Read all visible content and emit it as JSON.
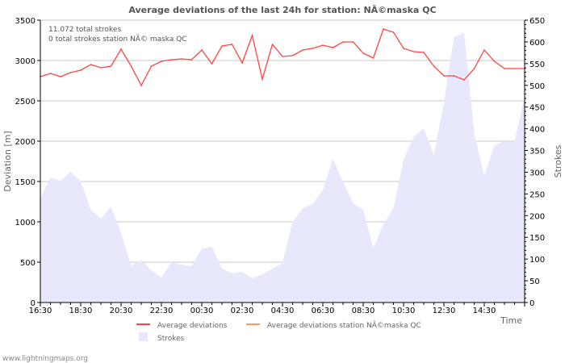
{
  "chart_data": {
    "type": "line",
    "title": "Average deviations of the last 24h for station: NÃ©maska QC",
    "info_lines": [
      "11.072 total strokes",
      "0 total strokes station NÃ© maska QC"
    ],
    "xlabel": "Time",
    "ylabel": "Deviation  [m]",
    "y2label": "Strokes",
    "ylim": [
      0,
      3500
    ],
    "y2lim": [
      0,
      650
    ],
    "yticks": [
      0,
      500,
      1000,
      1500,
      2000,
      2500,
      3000,
      3500
    ],
    "y2ticks": [
      0,
      50,
      100,
      150,
      200,
      250,
      300,
      350,
      400,
      450,
      500,
      550,
      600,
      650
    ],
    "xtick_labels": [
      "16:30",
      "18:30",
      "20:30",
      "22:30",
      "00:30",
      "02:30",
      "04:30",
      "06:30",
      "08:30",
      "10:30",
      "12:30",
      "14:30"
    ],
    "x_step_minutes": 30,
    "grid": true,
    "legend_position": "bottom",
    "series": [
      {
        "name": "Average deviations",
        "type": "line",
        "axis": "left",
        "color": "#ff4444",
        "values": [
          2800,
          2840,
          2800,
          2850,
          2880,
          2950,
          2910,
          2930,
          3140,
          2930,
          2690,
          2930,
          2990,
          3010,
          3020,
          3010,
          3130,
          2960,
          3180,
          3200,
          2970,
          3310,
          2770,
          3200,
          3050,
          3060,
          3130,
          3150,
          3190,
          3160,
          3230,
          3230,
          3090,
          3030,
          3390,
          3350,
          3150,
          3110,
          3100,
          2930,
          2810,
          2810,
          2760,
          2900,
          3130,
          2990,
          2900,
          2900,
          2900
        ]
      },
      {
        "name": "Average deviations station NÃ©maska QC",
        "type": "line",
        "axis": "left",
        "color": "#ff9955",
        "values": []
      },
      {
        "name": "Strokes",
        "type": "area",
        "axis": "right",
        "color": "#e8e8fc",
        "values": [
          241,
          288,
          280,
          301,
          279,
          214,
          193,
          221,
          160,
          84,
          98,
          74,
          58,
          93,
          87,
          84,
          124,
          128,
          78,
          67,
          71,
          56,
          65,
          78,
          91,
          186,
          217,
          227,
          260,
          331,
          277,
          228,
          214,
          126,
          180,
          217,
          329,
          381,
          401,
          340,
          461,
          611,
          622,
          390,
          292,
          362,
          371,
          371,
          474
        ]
      }
    ]
  },
  "footer": "www.lightningmaps.org"
}
